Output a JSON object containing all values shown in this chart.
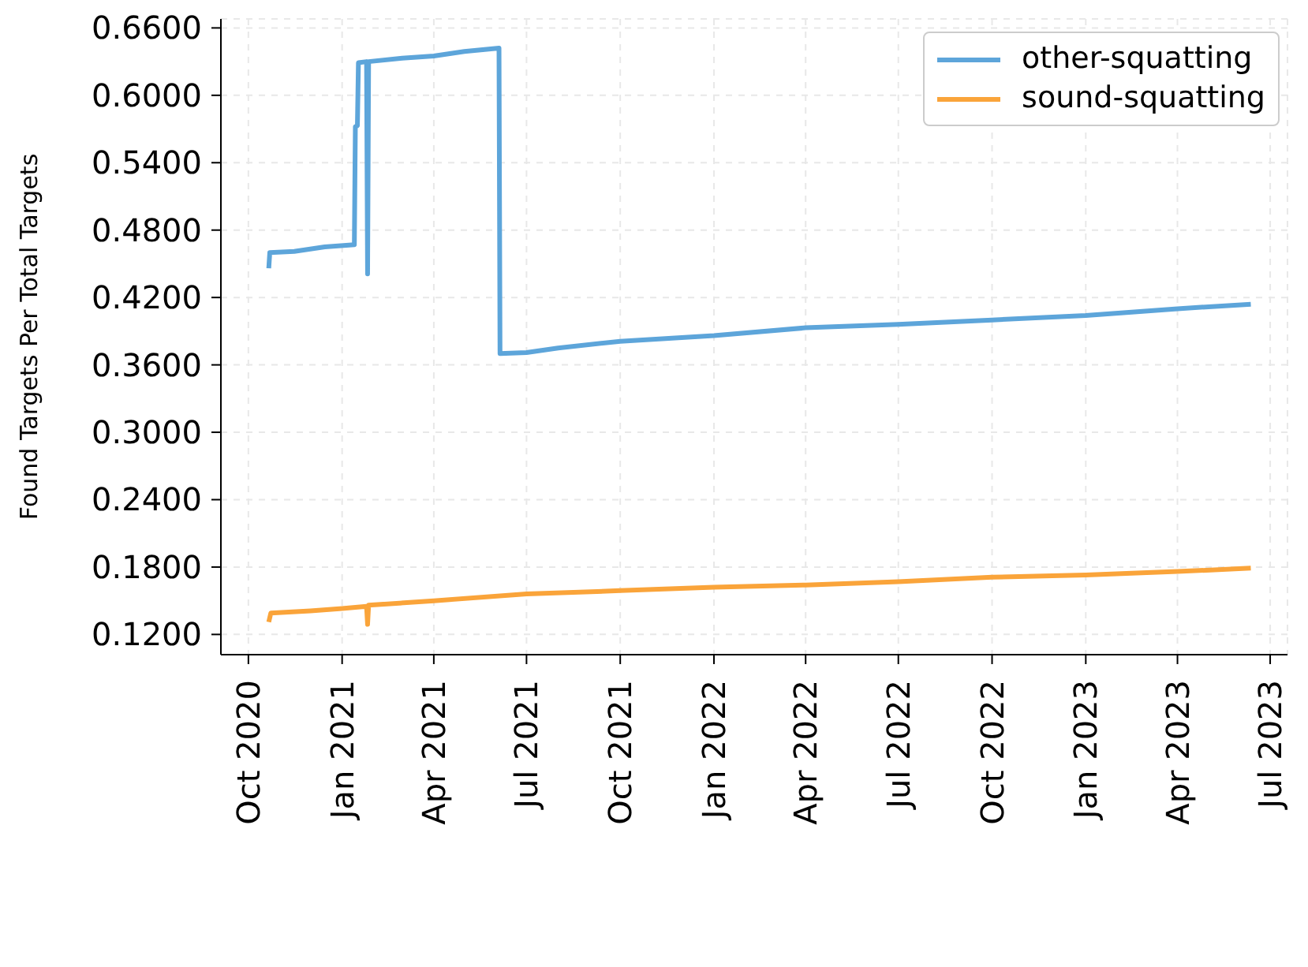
{
  "chart_data": {
    "type": "line",
    "ylabel": "Found Targets Per Total Targets",
    "xlim": [
      "2020-09-04",
      "2023-07-18"
    ],
    "xticks": [
      {
        "value": "2020-10-01",
        "label": "Oct 2020"
      },
      {
        "value": "2021-01-01",
        "label": "Jan 2021"
      },
      {
        "value": "2021-04-01",
        "label": "Apr 2021"
      },
      {
        "value": "2021-07-01",
        "label": "Jul 2021"
      },
      {
        "value": "2021-10-01",
        "label": "Oct 2021"
      },
      {
        "value": "2022-01-01",
        "label": "Jan 2022"
      },
      {
        "value": "2022-04-01",
        "label": "Apr 2022"
      },
      {
        "value": "2022-07-01",
        "label": "Jul 2022"
      },
      {
        "value": "2022-10-01",
        "label": "Oct 2022"
      },
      {
        "value": "2023-01-01",
        "label": "Jan 2023"
      },
      {
        "value": "2023-04-01",
        "label": "Apr 2023"
      },
      {
        "value": "2023-07-01",
        "label": "Jul 2023"
      }
    ],
    "ylim": [
      0.102,
      0.668
    ],
    "yticks": [
      {
        "value": 0.12,
        "label": "0.1200"
      },
      {
        "value": 0.18,
        "label": "0.1800"
      },
      {
        "value": 0.24,
        "label": "0.2400"
      },
      {
        "value": 0.3,
        "label": "0.3000"
      },
      {
        "value": 0.36,
        "label": "0.3600"
      },
      {
        "value": 0.42,
        "label": "0.4200"
      },
      {
        "value": 0.48,
        "label": "0.4800"
      },
      {
        "value": 0.54,
        "label": "0.5400"
      },
      {
        "value": 0.6,
        "label": "0.6000"
      },
      {
        "value": 0.66,
        "label": "0.6600"
      }
    ],
    "grid": true,
    "legend": "top right",
    "line_style": "solid",
    "marker": "none",
    "series": [
      {
        "name": "other-squatting",
        "color": "#5da5da",
        "x": [
          "2020-10-21",
          "2020-10-22",
          "2020-11-15",
          "2020-12-15",
          "2021-01-13",
          "2021-01-14",
          "2021-01-16",
          "2021-01-17",
          "2021-01-25",
          "2021-01-26",
          "2021-01-27",
          "2021-03-01",
          "2021-04-01",
          "2021-05-01",
          "2021-06-04",
          "2021-06-05",
          "2021-07-01",
          "2021-08-01",
          "2021-10-01",
          "2022-01-01",
          "2022-04-01",
          "2022-07-01",
          "2022-10-01",
          "2023-01-01",
          "2023-04-01",
          "2023-06-12"
        ],
        "values": [
          0.446,
          0.46,
          0.461,
          0.465,
          0.467,
          0.572,
          0.573,
          0.629,
          0.63,
          0.441,
          0.63,
          0.633,
          0.635,
          0.639,
          0.642,
          0.37,
          0.371,
          0.375,
          0.381,
          0.386,
          0.393,
          0.396,
          0.4,
          0.404,
          0.41,
          0.414
        ]
      },
      {
        "name": "sound-squatting",
        "color": "#faa43a",
        "x": [
          "2020-10-21",
          "2020-10-23",
          "2020-12-01",
          "2021-01-01",
          "2021-01-25",
          "2021-01-26",
          "2021-01-27",
          "2021-04-01",
          "2021-07-01",
          "2021-10-01",
          "2022-01-01",
          "2022-04-01",
          "2022-07-01",
          "2022-10-01",
          "2023-01-01",
          "2023-04-01",
          "2023-06-12"
        ],
        "values": [
          0.131,
          0.139,
          0.141,
          0.143,
          0.145,
          0.129,
          0.146,
          0.15,
          0.156,
          0.159,
          0.162,
          0.164,
          0.167,
          0.171,
          0.173,
          0.176,
          0.179
        ]
      }
    ]
  }
}
